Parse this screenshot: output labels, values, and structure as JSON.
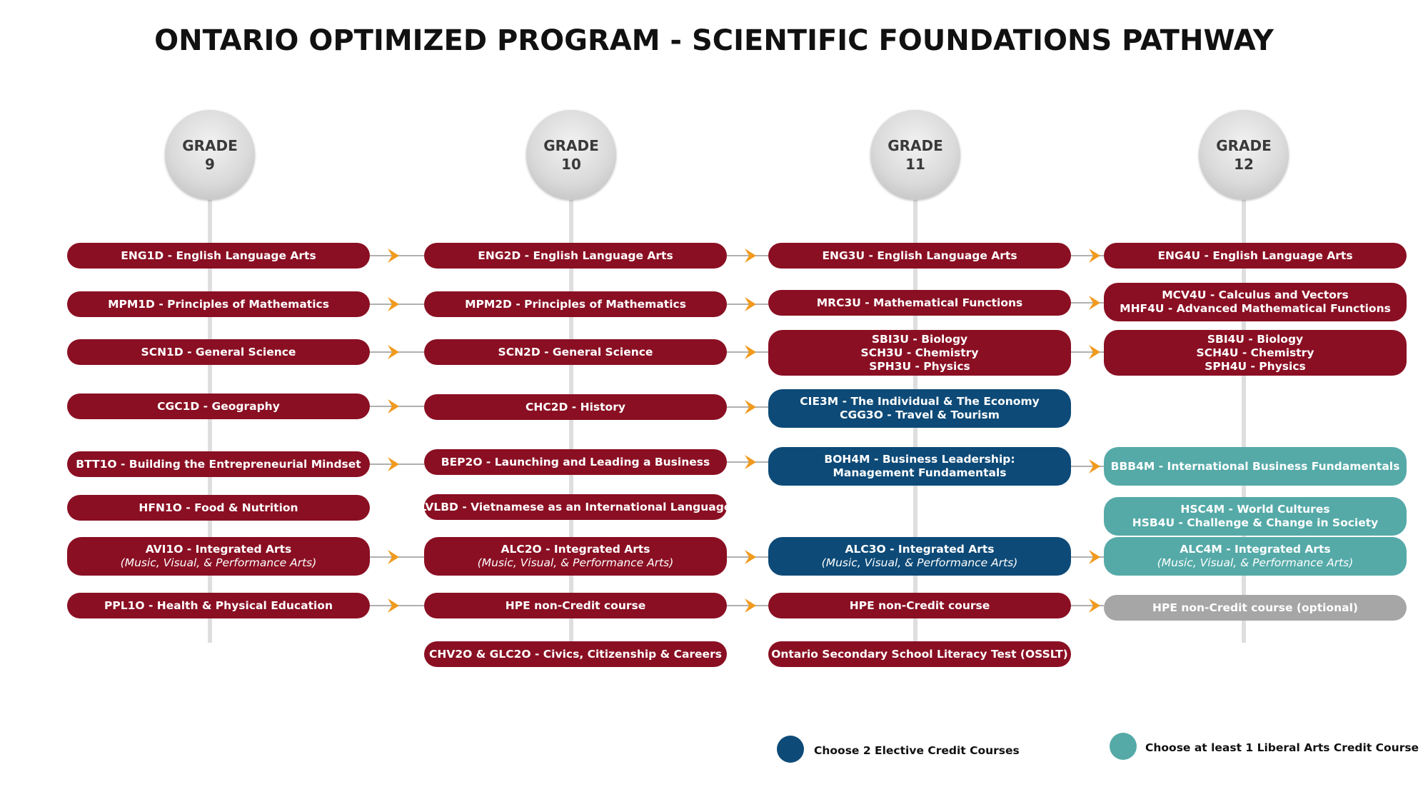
{
  "title": "ONTARIO OPTIMIZED PROGRAM - SCIENTIFIC FOUNDATIONS PATHWAY",
  "colors": {
    "required": "#8a0f23",
    "elective": "#0d4a77",
    "liberal_arts": "#55aaa8",
    "optional": "#a6a6a6",
    "arrow": "#f09a1e"
  },
  "grades": [
    {
      "label": "GRADE",
      "number": "9"
    },
    {
      "label": "GRADE",
      "number": "10"
    },
    {
      "label": "GRADE",
      "number": "11"
    },
    {
      "label": "GRADE",
      "number": "12"
    }
  ],
  "courses": {
    "g9": [
      {
        "lines": [
          "ENG1D - English Language Arts"
        ]
      },
      {
        "lines": [
          "MPM1D - Principles of Mathematics"
        ]
      },
      {
        "lines": [
          "SCN1D - General Science"
        ]
      },
      {
        "lines": [
          "CGC1D - Geography"
        ]
      },
      {
        "lines": [
          "BTT1O - Building the Entrepreneurial Mindset"
        ]
      },
      {
        "lines": [
          "HFN1O - Food & Nutrition"
        ]
      },
      {
        "lines": [
          "AVI1O - Integrated Arts",
          "(Music, Visual, & Performance Arts)"
        ]
      },
      {
        "lines": [
          "PPL1O - Health & Physical Education"
        ]
      }
    ],
    "g10": [
      {
        "lines": [
          "ENG2D - English Language Arts"
        ]
      },
      {
        "lines": [
          "MPM2D - Principles of Mathematics"
        ]
      },
      {
        "lines": [
          "SCN2D - General Science"
        ]
      },
      {
        "lines": [
          "CHC2D - History"
        ]
      },
      {
        "lines": [
          "BEP2O - Launching and Leading a Business"
        ]
      },
      {
        "lines": [
          "LVLBD - Vietnamese as an International Language"
        ]
      },
      {
        "lines": [
          "ALC2O - Integrated Arts",
          "(Music, Visual, & Performance Arts)"
        ]
      },
      {
        "lines": [
          "HPE non-Credit course"
        ]
      },
      {
        "lines": [
          "CHV2O & GLC2O - Civics, Citizenship & Careers"
        ]
      }
    ],
    "g11": [
      {
        "lines": [
          "ENG3U - English Language Arts"
        ]
      },
      {
        "lines": [
          "MRC3U - Mathematical Functions"
        ]
      },
      {
        "lines": [
          "SBI3U - Biology",
          "SCH3U - Chemistry",
          "SPH3U - Physics"
        ]
      },
      {
        "lines": [
          "CIE3M - The Individual & The Economy",
          "CGG3O - Travel & Tourism"
        ]
      },
      {
        "lines": [
          "BOH4M - Business Leadership:",
          "Management Fundamentals"
        ]
      },
      {
        "lines": [
          "ALC3O - Integrated Arts",
          "(Music, Visual, & Performance Arts)"
        ]
      },
      {
        "lines": [
          "HPE non-Credit course"
        ]
      },
      {
        "lines": [
          "Ontario Secondary School Literacy Test (OSSLT)"
        ]
      }
    ],
    "g12": [
      {
        "lines": [
          "ENG4U - English Language Arts"
        ]
      },
      {
        "lines": [
          "MCV4U - Calculus and Vectors",
          "MHF4U - Advanced Mathematical Functions"
        ]
      },
      {
        "lines": [
          "SBI4U - Biology",
          "SCH4U - Chemistry",
          "SPH4U - Physics"
        ]
      },
      {
        "lines": [
          "BBB4M - International Business Fundamentals"
        ]
      },
      {
        "lines": [
          "HSC4M - World Cultures",
          "HSB4U - Challenge & Change in Society"
        ]
      },
      {
        "lines": [
          "ALC4M - Integrated Arts",
          "(Music, Visual, & Performance Arts)"
        ]
      },
      {
        "lines": [
          "HPE non-Credit course (optional)"
        ]
      }
    ]
  },
  "legend": [
    {
      "label": "Choose 2 Elective Credit Courses",
      "color": "#0d4a77"
    },
    {
      "label": "Choose at least 1 Liberal Arts Credit Course",
      "color": "#55aaa8"
    }
  ]
}
